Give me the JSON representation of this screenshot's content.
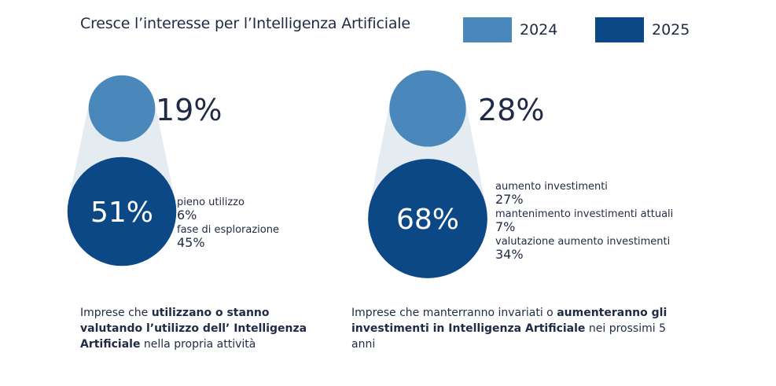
{
  "title": "Cresce l’interesse per l’Intelligenza Artificiale",
  "colors": {
    "y2024": "#4a87ba",
    "y2025": "#0d4886",
    "cone": "#e4ebf1"
  },
  "legend": [
    {
      "label": "2024",
      "color": "#4a87ba"
    },
    {
      "label": "2025",
      "color": "#0d4886"
    }
  ],
  "chart_data": [
    {
      "type": "bubble",
      "series": [
        {
          "name": "2024",
          "value": 19,
          "label": "19%"
        },
        {
          "name": "2025",
          "value": 51,
          "label": "51%"
        }
      ],
      "breakdown": [
        {
          "label": "pieno utilizzo",
          "value": "6%"
        },
        {
          "label": "fase di esplorazione",
          "value": "45%"
        }
      ],
      "caption": [
        {
          "text": "Imprese che ",
          "bold": false
        },
        {
          "text": "utilizzano o stanno valutando l’utilizzo dell’ Intelligenza Artificiale",
          "bold": true
        },
        {
          "text": " nella propria attività",
          "bold": false
        }
      ]
    },
    {
      "type": "bubble",
      "series": [
        {
          "name": "2024",
          "value": 28,
          "label": "28%"
        },
        {
          "name": "2025",
          "value": 68,
          "label": "68%"
        }
      ],
      "breakdown": [
        {
          "label": "aumento investimenti",
          "value": "27%"
        },
        {
          "label": "mantenimento investimenti attuali",
          "value": "7%"
        },
        {
          "label": "valutazione aumento investimenti",
          "value": "34%"
        }
      ],
      "caption": [
        {
          "text": "Imprese che manterranno invariati o ",
          "bold": false
        },
        {
          "text": "aumenteranno gli investimenti in Intelligenza Artificiale",
          "bold": true
        },
        {
          "text": " nei prossimi 5 anni",
          "bold": false
        }
      ]
    }
  ]
}
